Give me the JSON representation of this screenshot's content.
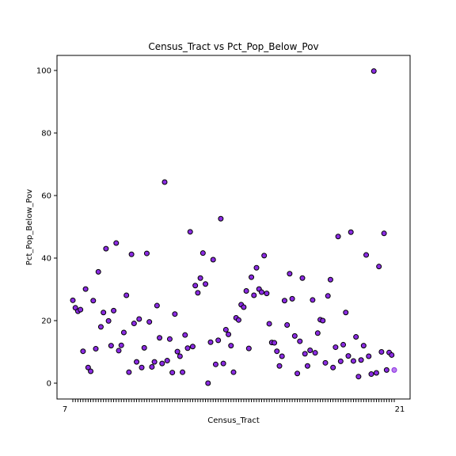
{
  "chart_data": {
    "type": "scatter",
    "title": "Census_Tract vs Pct_Pop_Below_Pov",
    "xlabel": "Census_Tract",
    "ylabel": "Pct_Pop_Below_Pov",
    "ylim": [
      -5,
      105
    ],
    "yticks": [
      0,
      20,
      40,
      60,
      80,
      100
    ],
    "x_tick_first": "7",
    "x_tick_last": "21",
    "grid": false,
    "legend": "none",
    "marker_color": "#8a2be2",
    "values": [
      26.5,
      24.1,
      23.0,
      23.5,
      10.2,
      30.1,
      5.0,
      3.8,
      26.4,
      11.0,
      35.6,
      18.0,
      22.6,
      43.0,
      19.9,
      12.0,
      23.2,
      44.8,
      10.4,
      12.1,
      16.2,
      28.1,
      3.5,
      41.2,
      19.1,
      6.8,
      20.5,
      5.0,
      11.3,
      41.5,
      19.6,
      5.2,
      6.8,
      24.8,
      14.5,
      6.3,
      64.3,
      7.2,
      14.1,
      3.4,
      22.1,
      10.1,
      8.6,
      3.5,
      15.4,
      11.2,
      48.4,
      11.7,
      31.2,
      28.9,
      33.6,
      41.6,
      31.7,
      0.0,
      13.1,
      39.5,
      6.0,
      13.7,
      52.6,
      6.3,
      17.1,
      15.6,
      12.0,
      3.5,
      20.9,
      20.2,
      25.1,
      24.3,
      29.5,
      11.1,
      33.9,
      28.1,
      36.9,
      30.1,
      29.1,
      40.8,
      28.7,
      19.0,
      13.0,
      12.9,
      10.2,
      5.5,
      8.6,
      26.4,
      18.6,
      35.0,
      27.0,
      15.1,
      3.1,
      13.4,
      33.6,
      9.4,
      5.5,
      10.5,
      26.6,
      9.7,
      16.0,
      20.3,
      20.0,
      6.5,
      27.9,
      33.1,
      5.0,
      11.5,
      46.9,
      7.0,
      12.3,
      22.6,
      8.7,
      48.3,
      7.1,
      14.8,
      2.1,
      7.4,
      12.0,
      41.0,
      8.6,
      2.9,
      99.8,
      3.3,
      37.3,
      10.0,
      47.9,
      4.2,
      9.8,
      9.0,
      4.2
    ]
  }
}
